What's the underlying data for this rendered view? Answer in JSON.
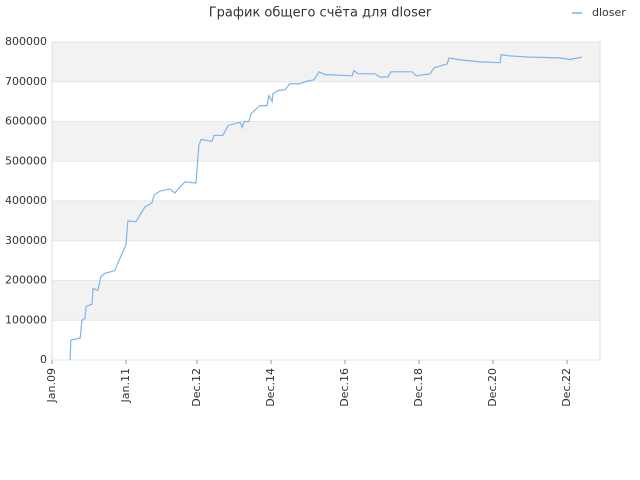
{
  "chart_data": {
    "type": "line",
    "title": "График общего счёта для dloser",
    "x": [
      2009.49,
      2009.51,
      2009.76,
      2009.81,
      2009.89,
      2009.92,
      2010.08,
      2010.11,
      2010.24,
      2010.32,
      2010.43,
      2010.7,
      2010.76,
      2011.0,
      2011.05,
      2011.27,
      2011.38,
      2011.51,
      2011.7,
      2011.76,
      2011.92,
      2012.19,
      2012.32,
      2012.46,
      2012.59,
      2012.89,
      2012.97,
      2013.03,
      2013.32,
      2013.38,
      2013.62,
      2013.76,
      2014.08,
      2014.14,
      2014.19,
      2014.32,
      2014.38,
      2014.62,
      2014.81,
      2014.86,
      2014.95,
      2014.97,
      2015.11,
      2015.3,
      2015.43,
      2015.7,
      2015.84,
      2016.08,
      2016.22,
      2016.38,
      2017.11,
      2017.16,
      2017.27,
      2017.73,
      2017.86,
      2018.08,
      2018.16,
      2018.73,
      2018.84,
      2019.22,
      2019.32,
      2019.68,
      2019.73,
      2020.03,
      2020.57,
      2021.11,
      2021.14,
      2021.38,
      2021.92,
      2022.73,
      2023.0,
      2023.22,
      2023.32
    ],
    "series": [
      {
        "name": "dloser",
        "color": "#7cb5ec",
        "values": [
          0,
          50000,
          55000,
          100000,
          105000,
          135000,
          140000,
          180000,
          175000,
          210000,
          218000,
          225000,
          240000,
          290000,
          350000,
          348000,
          365000,
          385000,
          395000,
          415000,
          425000,
          430000,
          420000,
          435000,
          448000,
          445000,
          540000,
          555000,
          550000,
          565000,
          565000,
          590000,
          598000,
          585000,
          600000,
          600000,
          620000,
          640000,
          640000,
          665000,
          650000,
          670000,
          678000,
          680000,
          695000,
          695000,
          700000,
          705000,
          725000,
          718000,
          715000,
          728000,
          720000,
          720000,
          712000,
          712000,
          725000,
          725000,
          715000,
          720000,
          735000,
          745000,
          760000,
          755000,
          750000,
          748000,
          768000,
          765000,
          762000,
          760000,
          756000,
          760000,
          762000
        ]
      }
    ],
    "xlim": [
      2009.0,
      2023.81
    ],
    "xticks": [
      {
        "value": 2009.0,
        "label": "Jan.09"
      },
      {
        "value": 2011.0,
        "label": "Jan.11"
      },
      {
        "value": 2012.92,
        "label": "Dec.12"
      },
      {
        "value": 2014.92,
        "label": "Dec.14"
      },
      {
        "value": 2016.92,
        "label": "Dec.16"
      },
      {
        "value": 2018.92,
        "label": "Dec.18"
      },
      {
        "value": 2020.92,
        "label": "Dec.20"
      },
      {
        "value": 2022.92,
        "label": "Dec.22"
      }
    ],
    "ylim": [
      0,
      800000
    ],
    "yticks": [
      0,
      100000,
      200000,
      300000,
      400000,
      500000,
      600000,
      700000,
      800000
    ],
    "grid": true,
    "legend": "top-right"
  }
}
